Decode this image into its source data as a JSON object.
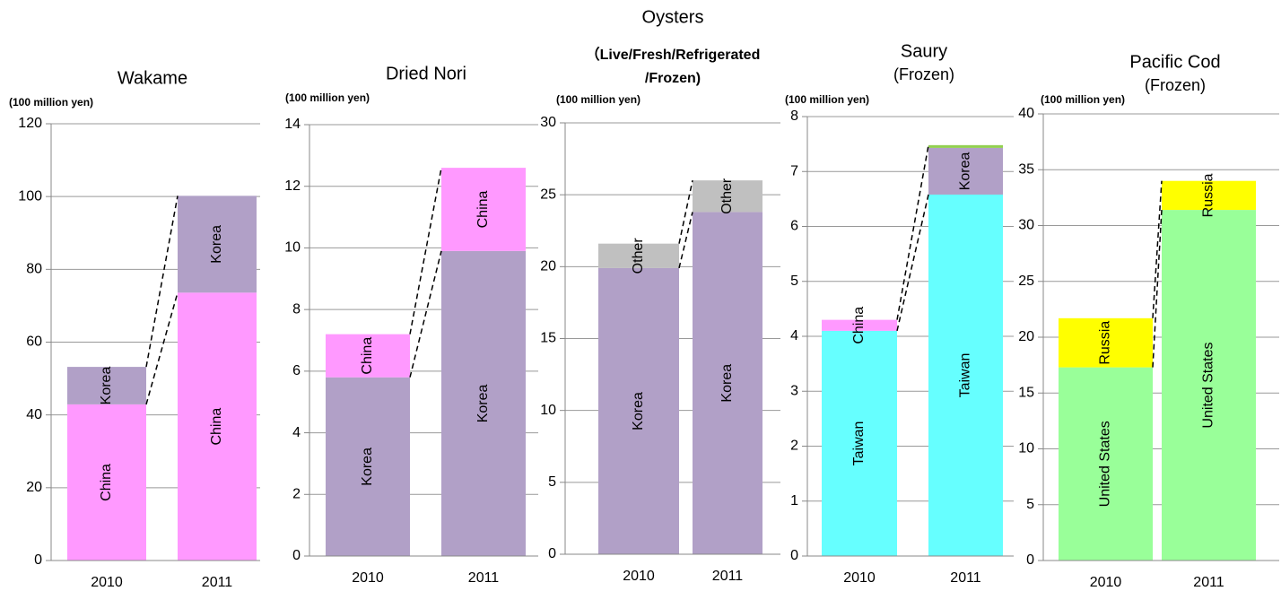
{
  "chart_data": [
    {
      "type": "bar",
      "stacked": true,
      "title": "Wakame",
      "y_label": "(100 million yen)",
      "categories": [
        "2010",
        "2011"
      ],
      "ylim": [
        0,
        120
      ],
      "yticks": [
        0,
        20,
        40,
        60,
        80,
        100,
        120
      ],
      "grid": true,
      "series": [
        {
          "name": "China",
          "color": "#ff99ff",
          "values": [
            42.9,
            73.6
          ]
        },
        {
          "name": "Korea",
          "color": "#b1a0c7",
          "values": [
            10.3,
            26.6
          ]
        }
      ]
    },
    {
      "type": "bar",
      "stacked": true,
      "title": "Dried Nori",
      "y_label": "(100 million yen)",
      "categories": [
        "2010",
        "2011"
      ],
      "ylim": [
        0,
        14
      ],
      "yticks": [
        0,
        2,
        4,
        6,
        8,
        10,
        12,
        14
      ],
      "grid": true,
      "series": [
        {
          "name": "Korea",
          "color": "#b1a0c7",
          "values": [
            5.8,
            9.9
          ]
        },
        {
          "name": "China",
          "color": "#ff99ff",
          "values": [
            1.4,
            2.7
          ]
        }
      ]
    },
    {
      "type": "bar",
      "stacked": true,
      "title": "Oysters",
      "subtitle": [
        "（Live/Fresh/Refrigerated",
        "/Frozen)"
      ],
      "y_label": "(100 million yen)",
      "categories": [
        "2010",
        "2011"
      ],
      "ylim": [
        0,
        30
      ],
      "yticks": [
        0,
        5,
        10,
        15,
        20,
        25,
        30
      ],
      "grid": true,
      "series": [
        {
          "name": "Korea",
          "color": "#b1a0c7",
          "values": [
            19.9,
            23.8
          ]
        },
        {
          "name": "Other",
          "color": "#c0c0c0",
          "values": [
            1.7,
            2.2
          ]
        }
      ]
    },
    {
      "type": "bar",
      "stacked": true,
      "title": "Saury",
      "subtitle": [
        "(Frozen)"
      ],
      "y_label": "(100 million yen)",
      "categories": [
        "2010",
        "2011"
      ],
      "ylim": [
        0,
        8
      ],
      "yticks": [
        0,
        1,
        2,
        3,
        4,
        5,
        6,
        7,
        8
      ],
      "grid": true,
      "series": [
        {
          "name": "Taiwan",
          "color": "#66ffff",
          "values": [
            4.1,
            6.58
          ]
        },
        {
          "name": "China",
          "color": "#ff99ff",
          "values": [
            0.2,
            null
          ]
        },
        {
          "name": "Korea",
          "color": "#b1a0c7",
          "values": [
            null,
            0.85
          ]
        },
        {
          "color": "#92d050",
          "values": [
            null,
            0.05
          ]
        }
      ]
    },
    {
      "type": "bar",
      "stacked": true,
      "title": "Pacific Cod",
      "subtitle": [
        "(Frozen)"
      ],
      "y_label": "(100 million yen)",
      "categories": [
        "2010",
        "2011"
      ],
      "ylim": [
        0,
        40
      ],
      "yticks": [
        0,
        5,
        10,
        15,
        20,
        25,
        30,
        35,
        40
      ],
      "grid": true,
      "series": [
        {
          "name": "United States",
          "color": "#99ff99",
          "values": [
            17.3,
            31.4
          ]
        },
        {
          "name": "Russia",
          "color": "#ffff00",
          "values": [
            4.4,
            2.6
          ]
        }
      ]
    }
  ]
}
